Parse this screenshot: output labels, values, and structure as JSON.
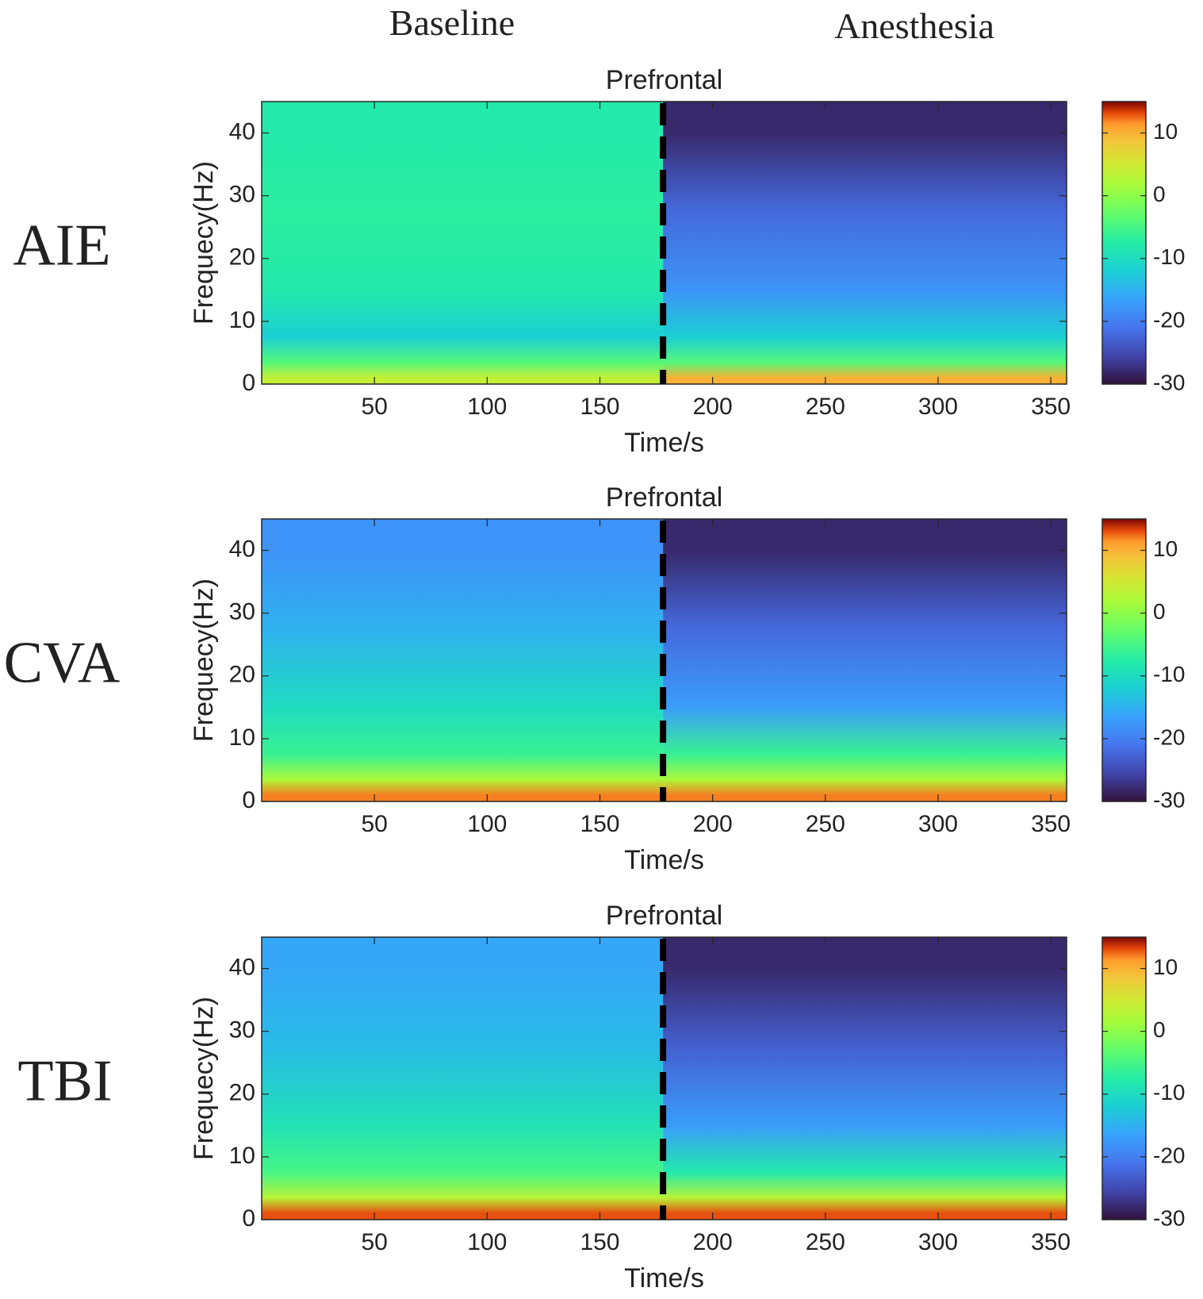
{
  "column_headers": [
    "Baseline",
    "Anesthesia"
  ],
  "colorbar_ticks": [
    10,
    0,
    -10,
    -20,
    -30
  ],
  "chart_data": [
    {
      "type": "heatmap",
      "row_label": "AIE",
      "title": "Prefrontal",
      "xlabel": "Time/s",
      "ylabel": "Frequecy(Hz)",
      "xlim": [
        0,
        357
      ],
      "ylim": [
        0,
        45
      ],
      "xticks": [
        50,
        100,
        150,
        200,
        250,
        300,
        350
      ],
      "yticks": [
        0,
        10,
        20,
        30,
        40
      ],
      "clim": [
        -30,
        15
      ],
      "colormap": "turbo",
      "transition_time": 178,
      "transition_line": "black dashed vertical line",
      "baseline_power_db": {
        "0-2Hz": 4,
        "2-5Hz": -4,
        "5-10Hz": -12,
        "10-20Hz": -8,
        "20-35Hz": -7,
        "35-45Hz": -8
      },
      "anesthesia_power_db": {
        "0-2Hz": 10,
        "2-5Hz": -4,
        "5-10Hz": -12,
        "10-20Hz": -18,
        "20-35Hz": -22,
        "35-45Hz": -28
      }
    },
    {
      "type": "heatmap",
      "row_label": "CVA",
      "title": "Prefrontal",
      "xlabel": "Time/s",
      "ylabel": "Frequecy(Hz)",
      "xlim": [
        0,
        357
      ],
      "ylim": [
        0,
        45
      ],
      "xticks": [
        50,
        100,
        150,
        200,
        250,
        300,
        350
      ],
      "yticks": [
        0,
        10,
        20,
        30,
        40
      ],
      "clim": [
        -30,
        15
      ],
      "colormap": "turbo",
      "transition_time": 178,
      "transition_line": "black dashed vertical line",
      "baseline_power_db": {
        "0-2Hz": 12,
        "2-5Hz": 2,
        "5-10Hz": -6,
        "10-20Hz": -10,
        "20-35Hz": -15,
        "35-45Hz": -18
      },
      "anesthesia_power_db": {
        "0-2Hz": 12,
        "2-5Hz": 2,
        "5-10Hz": -6,
        "10-20Hz": -17,
        "20-35Hz": -22,
        "35-45Hz": -28
      }
    },
    {
      "type": "heatmap",
      "row_label": "TBI",
      "title": "Prefrontal",
      "xlabel": "Time/s",
      "ylabel": "Frequecy(Hz)",
      "xlim": [
        0,
        357
      ],
      "ylim": [
        0,
        45
      ],
      "xticks": [
        50,
        100,
        150,
        200,
        250,
        300,
        350
      ],
      "yticks": [
        0,
        10,
        20,
        30,
        40
      ],
      "clim": [
        -30,
        15
      ],
      "colormap": "turbo",
      "transition_time": 178,
      "transition_line": "black dashed vertical line",
      "baseline_power_db": {
        "0-2Hz": 13,
        "2-5Hz": 3,
        "5-10Hz": -5,
        "10-20Hz": -9,
        "20-35Hz": -14,
        "35-45Hz": -16
      },
      "anesthesia_power_db": {
        "0-2Hz": 13,
        "2-5Hz": 3,
        "5-10Hz": -8,
        "10-20Hz": -17,
        "20-35Hz": -23,
        "35-45Hz": -28
      }
    }
  ]
}
